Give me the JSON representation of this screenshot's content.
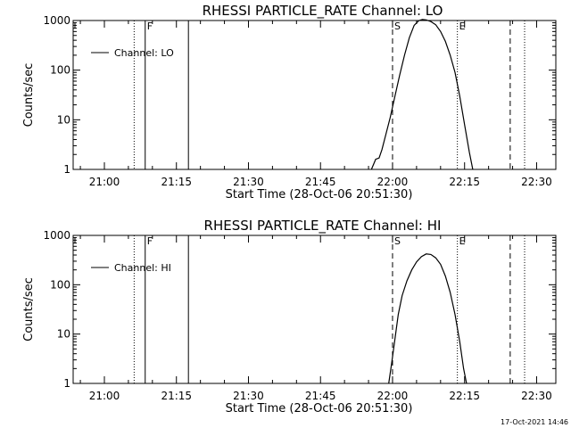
{
  "chart_data": [
    {
      "type": "line",
      "title": "RHESSI PARTICLE_RATE Channel: LO",
      "xlabel": "Start Time (28-Oct-06 20:51:30)",
      "ylabel": "Counts/sec",
      "yscale": "log",
      "ylim": [
        1,
        1000
      ],
      "y_ticks": [
        "1",
        "10",
        "100",
        "1000"
      ],
      "x_range_minutes_of_day": [
        1253.5,
        1354
      ],
      "x_ticks": [
        "21:00",
        "21:15",
        "21:30",
        "21:45",
        "22:00",
        "22:15",
        "22:30"
      ],
      "x_tick_minutes": [
        1260,
        1275,
        1290,
        1305,
        1320,
        1335,
        1350
      ],
      "legend": {
        "position": "top-left",
        "entries": [
          "Channel: LO"
        ]
      },
      "markers": [
        {
          "label": "",
          "minute": 1277.5,
          "style": "solid"
        },
        {
          "label": "F",
          "minute": 1268.5,
          "style": "solid"
        },
        {
          "label": "",
          "minute": 1266.2,
          "style": "dotted"
        },
        {
          "label": "S",
          "minute": 1320,
          "style": "dashed"
        },
        {
          "label": "",
          "minute": 1344.5,
          "style": "dashed"
        },
        {
          "label": "E",
          "minute": 1333.5,
          "style": "dotted"
        },
        {
          "label": "",
          "minute": 1347.5,
          "style": "dotted"
        }
      ],
      "series": [
        {
          "values_minute_rate": [
            [
              1315.6,
              1.0
            ],
            [
              1316.5,
              1.6
            ],
            [
              1317.2,
              1.7
            ],
            [
              1317.8,
              2.5
            ],
            [
              1318.6,
              5
            ],
            [
              1319.5,
              11
            ],
            [
              1320.5,
              30
            ],
            [
              1321.5,
              80
            ],
            [
              1322.5,
              200
            ],
            [
              1323.5,
              450
            ],
            [
              1324.5,
              800
            ],
            [
              1325.5,
              1000
            ],
            [
              1326.2,
              1050
            ],
            [
              1327,
              1030
            ],
            [
              1328,
              950
            ],
            [
              1329,
              820
            ],
            [
              1330,
              600
            ],
            [
              1331,
              380
            ],
            [
              1332,
              200
            ],
            [
              1333,
              90
            ],
            [
              1334,
              30
            ],
            [
              1335,
              8
            ],
            [
              1336,
              2.2
            ],
            [
              1336.7,
              1.0
            ]
          ]
        }
      ]
    },
    {
      "type": "line",
      "title": "RHESSI PARTICLE_RATE Channel: HI",
      "xlabel": "Start Time (28-Oct-06 20:51:30)",
      "ylabel": "Counts/sec",
      "yscale": "log",
      "ylim": [
        1,
        1000
      ],
      "y_ticks": [
        "1",
        "10",
        "100",
        "1000"
      ],
      "x_range_minutes_of_day": [
        1253.5,
        1354
      ],
      "x_ticks": [
        "21:00",
        "21:15",
        "21:30",
        "21:45",
        "22:00",
        "22:15",
        "22:30"
      ],
      "x_tick_minutes": [
        1260,
        1275,
        1290,
        1305,
        1320,
        1335,
        1350
      ],
      "legend": {
        "position": "top-left",
        "entries": [
          "Channel: HI"
        ]
      },
      "markers": [
        {
          "label": "",
          "minute": 1277.5,
          "style": "solid"
        },
        {
          "label": "F",
          "minute": 1268.5,
          "style": "solid"
        },
        {
          "label": "",
          "minute": 1266.2,
          "style": "dotted"
        },
        {
          "label": "S",
          "minute": 1320,
          "style": "dashed"
        },
        {
          "label": "",
          "minute": 1344.5,
          "style": "dashed"
        },
        {
          "label": "E",
          "minute": 1333.5,
          "style": "dotted"
        },
        {
          "label": "",
          "minute": 1347.5,
          "style": "dotted"
        }
      ],
      "series": [
        {
          "values_minute_rate": [
            [
              1319.2,
              1.0
            ],
            [
              1319.8,
              2.5
            ],
            [
              1320.5,
              8
            ],
            [
              1321.2,
              25
            ],
            [
              1322,
              60
            ],
            [
              1323,
              120
            ],
            [
              1324,
              200
            ],
            [
              1325,
              290
            ],
            [
              1326,
              370
            ],
            [
              1327,
              420
            ],
            [
              1328,
              410
            ],
            [
              1329,
              350
            ],
            [
              1330,
              260
            ],
            [
              1331,
              150
            ],
            [
              1332,
              70
            ],
            [
              1333,
              25
            ],
            [
              1334,
              7
            ],
            [
              1334.8,
              2
            ],
            [
              1335.4,
              1.0
            ]
          ]
        }
      ]
    }
  ],
  "footer": {
    "timestamp": "17-Oct-2021 14:46"
  }
}
